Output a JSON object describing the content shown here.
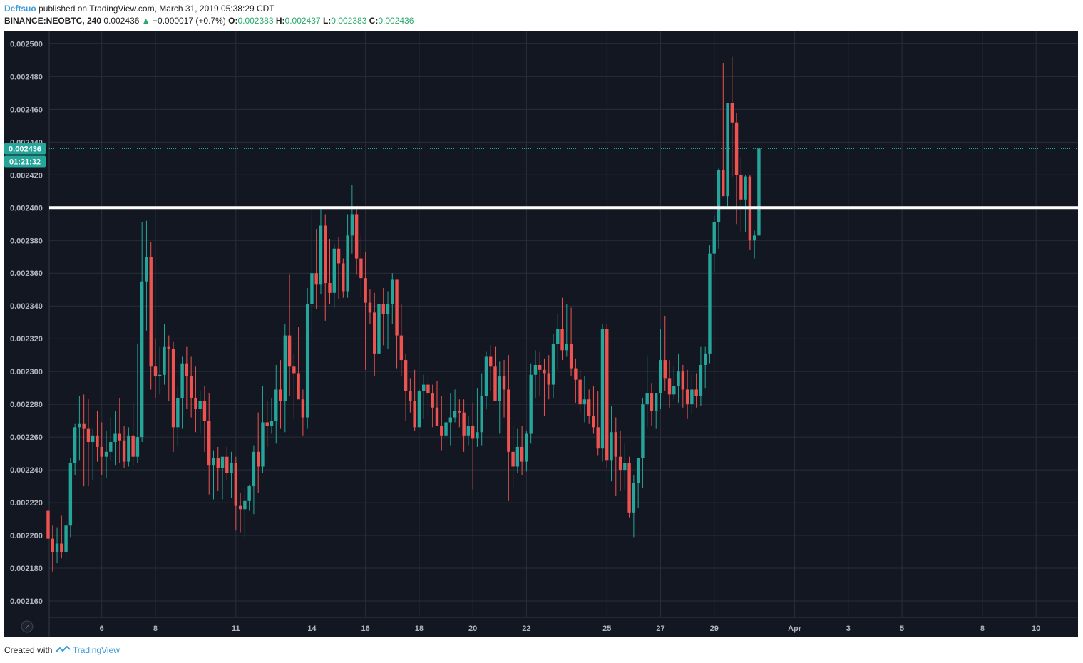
{
  "header": {
    "author": "Deftsuo",
    "published_text": "published on TradingView.com, March 31, 2019 05:38:29 CDT",
    "symbol": "BINANCE:NEOBTC, 240",
    "last": "0.002436",
    "change": "+0.000017 (+0.7%)",
    "o_label": "O:",
    "o": "0.002383",
    "h_label": "H:",
    "h": "0.002437",
    "l_label": "L:",
    "l": "0.002383",
    "c_label": "C:",
    "c": "0.002436"
  },
  "price_tag": {
    "price": "0.002436",
    "countdown": "01:21:32"
  },
  "scale_mode_label": "Z",
  "footer": {
    "created_with": "Created with",
    "brand": "TradingView"
  },
  "colors": {
    "background": "#131722",
    "grid": "#2a2e39",
    "up": "#26a69a",
    "down": "#ef5350",
    "level_line": "#ffffff"
  },
  "chart_data": {
    "type": "candlestick",
    "symbol": "BINANCE:NEOBTC",
    "interval": "240",
    "ylim": [
      0.00215,
      0.002508
    ],
    "y_ticks": [
      "0.002160",
      "0.002180",
      "0.002200",
      "0.002220",
      "0.002240",
      "0.002260",
      "0.002280",
      "0.002300",
      "0.002320",
      "0.002340",
      "0.002360",
      "0.002380",
      "0.002400",
      "0.002420",
      "0.002440",
      "0.002460",
      "0.002480",
      "0.002500"
    ],
    "x_ticks": [
      {
        "label": "6",
        "bar": 12
      },
      {
        "label": "8",
        "bar": 24
      },
      {
        "label": "11",
        "bar": 42
      },
      {
        "label": "14",
        "bar": 59
      },
      {
        "label": "16",
        "bar": 71
      },
      {
        "label": "18",
        "bar": 83
      },
      {
        "label": "20",
        "bar": 95
      },
      {
        "label": "22",
        "bar": 107
      },
      {
        "label": "25",
        "bar": 125
      },
      {
        "label": "27",
        "bar": 137
      },
      {
        "label": "29",
        "bar": 149
      },
      {
        "label": "Apr",
        "bar": 167
      },
      {
        "label": "3",
        "bar": 179
      },
      {
        "label": "5",
        "bar": 191
      },
      {
        "label": "8",
        "bar": 209
      },
      {
        "label": "10",
        "bar": 221
      }
    ],
    "horizontal_level": 0.0024,
    "last_price": 0.002436,
    "candles": [
      [
        0.002215,
        0.002222,
        0.002172,
        0.002198
      ],
      [
        0.002198,
        0.002206,
        0.002178,
        0.00219
      ],
      [
        0.00219,
        0.002205,
        0.002183,
        0.002195
      ],
      [
        0.002195,
        0.002212,
        0.002186,
        0.00219
      ],
      [
        0.00219,
        0.002209,
        0.002186,
        0.002206
      ],
      [
        0.002206,
        0.002247,
        0.002199,
        0.002244
      ],
      [
        0.002244,
        0.002268,
        0.002237,
        0.002266
      ],
      [
        0.002266,
        0.002285,
        0.002246,
        0.002268
      ],
      [
        0.002268,
        0.002286,
        0.00223,
        0.002265
      ],
      [
        0.002265,
        0.002283,
        0.00223,
        0.002257
      ],
      [
        0.002257,
        0.002265,
        0.002234,
        0.002261
      ],
      [
        0.002261,
        0.002276,
        0.002245,
        0.002254
      ],
      [
        0.002254,
        0.002269,
        0.002237,
        0.002248
      ],
      [
        0.002248,
        0.002264,
        0.002235,
        0.002251
      ],
      [
        0.002251,
        0.002272,
        0.002246,
        0.002257
      ],
      [
        0.002257,
        0.002276,
        0.002243,
        0.002262
      ],
      [
        0.002262,
        0.002284,
        0.002244,
        0.002258
      ],
      [
        0.002258,
        0.002267,
        0.002241,
        0.002245
      ],
      [
        0.002245,
        0.002266,
        0.002242,
        0.002261
      ],
      [
        0.002261,
        0.002281,
        0.002243,
        0.002248
      ],
      [
        0.002248,
        0.002317,
        0.002244,
        0.00226
      ],
      [
        0.00226,
        0.002391,
        0.002257,
        0.002355
      ],
      [
        0.002355,
        0.002392,
        0.002325,
        0.00237
      ],
      [
        0.00237,
        0.002379,
        0.002289,
        0.002303
      ],
      [
        0.002303,
        0.00232,
        0.002284,
        0.002297
      ],
      [
        0.002297,
        0.002315,
        0.002286,
        0.002298
      ],
      [
        0.002298,
        0.002329,
        0.002292,
        0.002315
      ],
      [
        0.002315,
        0.002322,
        0.002282,
        0.002314
      ],
      [
        0.002314,
        0.002318,
        0.002251,
        0.002266
      ],
      [
        0.002266,
        0.002291,
        0.002255,
        0.002284
      ],
      [
        0.002284,
        0.002309,
        0.002265,
        0.002305
      ],
      [
        0.002305,
        0.002315,
        0.002277,
        0.002297
      ],
      [
        0.002297,
        0.002309,
        0.002272,
        0.002284
      ],
      [
        0.002284,
        0.002303,
        0.002263,
        0.002277
      ],
      [
        0.002277,
        0.002288,
        0.002262,
        0.002282
      ],
      [
        0.002282,
        0.002291,
        0.002251,
        0.00227
      ],
      [
        0.00227,
        0.002287,
        0.002225,
        0.002243
      ],
      [
        0.002243,
        0.002252,
        0.002222,
        0.002247
      ],
      [
        0.002247,
        0.002254,
        0.002227,
        0.002241
      ],
      [
        0.002241,
        0.002246,
        0.002222,
        0.002248
      ],
      [
        0.002248,
        0.002254,
        0.002234,
        0.002238
      ],
      [
        0.002238,
        0.002251,
        0.002223,
        0.002244
      ],
      [
        0.002244,
        0.002248,
        0.002203,
        0.002218
      ],
      [
        0.002218,
        0.002226,
        0.002202,
        0.002216
      ],
      [
        0.002216,
        0.002229,
        0.002199,
        0.002221
      ],
      [
        0.002221,
        0.002231,
        0.002215,
        0.00223
      ],
      [
        0.00223,
        0.002255,
        0.002213,
        0.002251
      ],
      [
        0.002251,
        0.002275,
        0.002226,
        0.002242
      ],
      [
        0.002242,
        0.002291,
        0.002238,
        0.002269
      ],
      [
        0.002269,
        0.002282,
        0.002254,
        0.002267
      ],
      [
        0.002267,
        0.002284,
        0.002262,
        0.00227
      ],
      [
        0.00227,
        0.002304,
        0.002256,
        0.002289
      ],
      [
        0.002289,
        0.002307,
        0.002265,
        0.002282
      ],
      [
        0.002282,
        0.002329,
        0.002263,
        0.002322
      ],
      [
        0.002322,
        0.002359,
        0.002285,
        0.002303
      ],
      [
        0.002303,
        0.002311,
        0.002271,
        0.002299
      ],
      [
        0.002299,
        0.002327,
        0.002285,
        0.002283
      ],
      [
        0.002283,
        0.002289,
        0.002261,
        0.002272
      ],
      [
        0.002272,
        0.002351,
        0.002265,
        0.002341
      ],
      [
        0.002341,
        0.0024,
        0.002323,
        0.00236
      ],
      [
        0.00236,
        0.002387,
        0.002338,
        0.002353
      ],
      [
        0.002353,
        0.002399,
        0.002347,
        0.002389
      ],
      [
        0.002389,
        0.002396,
        0.002331,
        0.002354
      ],
      [
        0.002354,
        0.002381,
        0.002341,
        0.002348
      ],
      [
        0.002348,
        0.002378,
        0.002339,
        0.002375
      ],
      [
        0.002375,
        0.002382,
        0.002344,
        0.002366
      ],
      [
        0.002366,
        0.002369,
        0.002345,
        0.002349
      ],
      [
        0.002349,
        0.002396,
        0.002345,
        0.002383
      ],
      [
        0.002383,
        0.002414,
        0.002372,
        0.002396
      ],
      [
        0.002396,
        0.002401,
        0.002359,
        0.002369
      ],
      [
        0.002369,
        0.002383,
        0.002345,
        0.002357
      ],
      [
        0.002357,
        0.002373,
        0.002301,
        0.002342
      ],
      [
        0.002342,
        0.00235,
        0.002329,
        0.002336
      ],
      [
        0.002336,
        0.002348,
        0.002297,
        0.002311
      ],
      [
        0.002311,
        0.002346,
        0.002302,
        0.002341
      ],
      [
        0.002341,
        0.002351,
        0.002316,
        0.002335
      ],
      [
        0.002335,
        0.002349,
        0.002314,
        0.002341
      ],
      [
        0.002341,
        0.00236,
        0.002329,
        0.002356
      ],
      [
        0.002356,
        0.002356,
        0.002302,
        0.002322
      ],
      [
        0.002322,
        0.002341,
        0.002297,
        0.002307
      ],
      [
        0.002307,
        0.002311,
        0.00227,
        0.002288
      ],
      [
        0.002288,
        0.002296,
        0.002275,
        0.002282
      ],
      [
        0.002282,
        0.002301,
        0.002264,
        0.002266
      ],
      [
        0.002266,
        0.002289,
        0.002268,
        0.002288
      ],
      [
        0.002288,
        0.002298,
        0.002271,
        0.002292
      ],
      [
        0.002292,
        0.002298,
        0.002272,
        0.002287
      ],
      [
        0.002287,
        0.002292,
        0.002266,
        0.002278
      ],
      [
        0.002278,
        0.002294,
        0.002268,
        0.002267
      ],
      [
        0.002267,
        0.002285,
        0.002252,
        0.002261
      ],
      [
        0.002261,
        0.002276,
        0.00225,
        0.002269
      ],
      [
        0.002269,
        0.002287,
        0.002255,
        0.002272
      ],
      [
        0.002272,
        0.002289,
        0.002269,
        0.002276
      ],
      [
        0.002276,
        0.002283,
        0.002266,
        0.002275
      ],
      [
        0.002275,
        0.002283,
        0.002251,
        0.002261
      ],
      [
        0.002261,
        0.002273,
        0.002255,
        0.002267
      ],
      [
        0.002267,
        0.002281,
        0.002228,
        0.002259
      ],
      [
        0.002259,
        0.00229,
        0.002254,
        0.002263
      ],
      [
        0.002263,
        0.002299,
        0.002255,
        0.002285
      ],
      [
        0.002285,
        0.002312,
        0.002277,
        0.002309
      ],
      [
        0.002309,
        0.002316,
        0.002288,
        0.002303
      ],
      [
        0.002303,
        0.002315,
        0.002285,
        0.002282
      ],
      [
        0.002282,
        0.002306,
        0.002262,
        0.002297
      ],
      [
        0.002297,
        0.002307,
        0.002272,
        0.002289
      ],
      [
        0.002289,
        0.00231,
        0.002221,
        0.002251
      ],
      [
        0.002251,
        0.002267,
        0.002229,
        0.002242
      ],
      [
        0.002242,
        0.002265,
        0.002238,
        0.002254
      ],
      [
        0.002254,
        0.002267,
        0.002237,
        0.002245
      ],
      [
        0.002245,
        0.002264,
        0.002239,
        0.002262
      ],
      [
        0.002262,
        0.002305,
        0.002256,
        0.002298
      ],
      [
        0.002298,
        0.002313,
        0.002284,
        0.002304
      ],
      [
        0.002304,
        0.002312,
        0.002285,
        0.002301
      ],
      [
        0.002301,
        0.002308,
        0.002273,
        0.002299
      ],
      [
        0.002299,
        0.00231,
        0.002283,
        0.002292
      ],
      [
        0.002292,
        0.002323,
        0.002284,
        0.002317
      ],
      [
        0.002317,
        0.002335,
        0.002301,
        0.002326
      ],
      [
        0.002326,
        0.002345,
        0.002307,
        0.002313
      ],
      [
        0.002313,
        0.002341,
        0.002309,
        0.002317
      ],
      [
        0.002317,
        0.002339,
        0.002297,
        0.002302
      ],
      [
        0.002302,
        0.002308,
        0.002281,
        0.002295
      ],
      [
        0.002295,
        0.002301,
        0.002275,
        0.00228
      ],
      [
        0.00228,
        0.002297,
        0.002269,
        0.002283
      ],
      [
        0.002283,
        0.002289,
        0.002268,
        0.002273
      ],
      [
        0.002273,
        0.002291,
        0.002262,
        0.002266
      ],
      [
        0.002266,
        0.002288,
        0.002249,
        0.002253
      ],
      [
        0.002253,
        0.002329,
        0.002245,
        0.002326
      ],
      [
        0.002326,
        0.002329,
        0.002241,
        0.002246
      ],
      [
        0.002246,
        0.002279,
        0.002233,
        0.002263
      ],
      [
        0.002263,
        0.002272,
        0.002224,
        0.002248
      ],
      [
        0.002248,
        0.002264,
        0.002227,
        0.00224
      ],
      [
        0.00224,
        0.002256,
        0.002228,
        0.002244
      ],
      [
        0.002244,
        0.002248,
        0.002211,
        0.002214
      ],
      [
        0.002214,
        0.002237,
        0.002199,
        0.002232
      ],
      [
        0.002232,
        0.002246,
        0.002217,
        0.002247
      ],
      [
        0.002247,
        0.002284,
        0.002229,
        0.00228
      ],
      [
        0.00228,
        0.002309,
        0.002266,
        0.002287
      ],
      [
        0.002287,
        0.002293,
        0.002267,
        0.002276
      ],
      [
        0.002276,
        0.002287,
        0.002265,
        0.002287
      ],
      [
        0.002287,
        0.002326,
        0.002277,
        0.002307
      ],
      [
        0.002307,
        0.002334,
        0.002288,
        0.002296
      ],
      [
        0.002296,
        0.002307,
        0.002278,
        0.002286
      ],
      [
        0.002286,
        0.002303,
        0.002283,
        0.002291
      ],
      [
        0.002291,
        0.002311,
        0.002281,
        0.0023
      ],
      [
        0.0023,
        0.002304,
        0.002278,
        0.002289
      ],
      [
        0.002289,
        0.002301,
        0.002271,
        0.00228
      ],
      [
        0.00228,
        0.002298,
        0.002274,
        0.002289
      ],
      [
        0.002289,
        0.002299,
        0.002278,
        0.002285
      ],
      [
        0.002285,
        0.002315,
        0.002279,
        0.002304
      ],
      [
        0.002304,
        0.002315,
        0.00229,
        0.002311
      ],
      [
        0.002311,
        0.002377,
        0.002305,
        0.002372
      ],
      [
        0.002372,
        0.002395,
        0.002361,
        0.002391
      ],
      [
        0.002391,
        0.002424,
        0.002375,
        0.002423
      ],
      [
        0.002423,
        0.002488,
        0.002408,
        0.002407
      ],
      [
        0.002407,
        0.002463,
        0.002401,
        0.002464
      ],
      [
        0.002464,
        0.002492,
        0.002419,
        0.002452
      ],
      [
        0.002452,
        0.002458,
        0.00239,
        0.00242
      ],
      [
        0.00242,
        0.002431,
        0.002385,
        0.002405
      ],
      [
        0.002405,
        0.00242,
        0.002385,
        0.002419
      ],
      [
        0.002419,
        0.00242,
        0.002374,
        0.00238
      ],
      [
        0.00238,
        0.002386,
        0.002369,
        0.002383
      ],
      [
        0.002383,
        0.002437,
        0.002383,
        0.002436
      ]
    ]
  }
}
